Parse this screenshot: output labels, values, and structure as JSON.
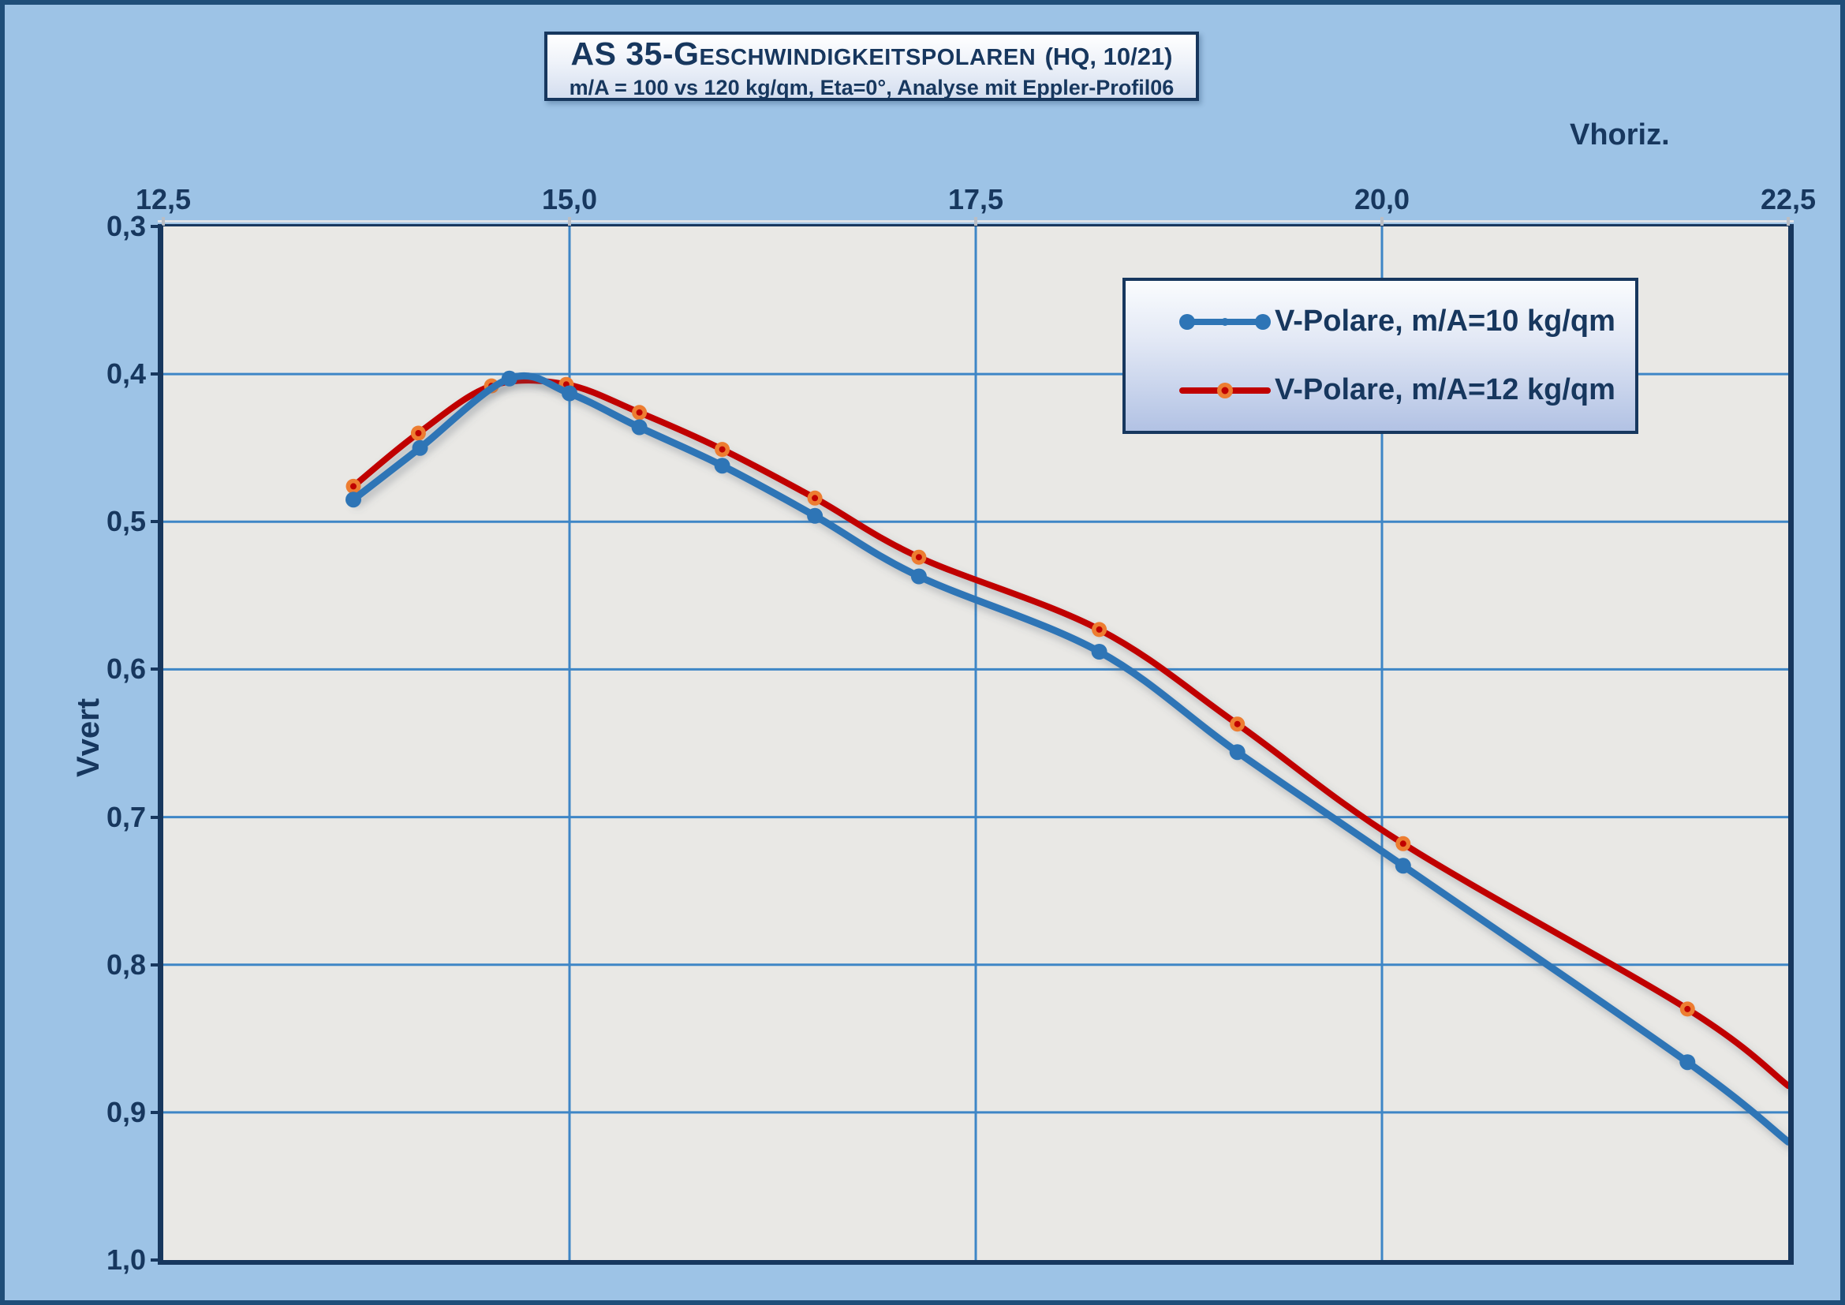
{
  "frame": {
    "background": "#9DC3E6",
    "border_color": "#1F4E79"
  },
  "title": {
    "main": "AS 35-Geschwindigkeitspolaren",
    "note": "(HQ, 10/21)",
    "subtitle": "m/A = 100 vs 120 kg/qm, Eta=0°, Analyse mit Eppler-Profil06"
  },
  "colors": {
    "navy": "#17375E",
    "plot_bg": "#E9E8E5",
    "grid": "#3E86C6",
    "blue": "#2E75B6",
    "red": "#C00000",
    "orange": "#ED7D31",
    "tick_gray": "#B9BEC6"
  },
  "chart_data": {
    "type": "line",
    "title": "AS 35-Geschwindigkeitspolaren (HQ, 10/21)",
    "subtitle": "m/A = 100 vs 120 kg/qm, Eta=0°, Analyse mit Eppler-Profil06",
    "xlabel": "Vhoriz.",
    "ylabel": "Vvert",
    "xlim": [
      12.5,
      22.5
    ],
    "ylim": [
      0.3,
      1.0
    ],
    "y_axis_inverted": true,
    "x_tick_values": [
      12.5,
      15.0,
      17.5,
      20.0,
      22.5
    ],
    "x_ticks": [
      "12,5",
      "15,0",
      "17,5",
      "20,0",
      "22,5"
    ],
    "y_tick_values": [
      0.3,
      0.4,
      0.5,
      0.6,
      0.7,
      0.8,
      0.9,
      1.0
    ],
    "y_ticks": [
      "0,3",
      "0,4",
      "0,5",
      "0,6",
      "0,7",
      "0,8",
      "0,9",
      "1,0"
    ],
    "grid": true,
    "legend_position": "upper right",
    "series": [
      {
        "name": "V-Polare, m/A=10 kg/qm",
        "color": "#2E75B6",
        "marker": "dot",
        "x": [
          13.67,
          14.08,
          14.63,
          15.0,
          15.43,
          15.94,
          16.51,
          17.15,
          18.26,
          19.11,
          20.13,
          21.88,
          22.5
        ],
        "y": [
          0.485,
          0.45,
          0.403,
          0.413,
          0.436,
          0.462,
          0.496,
          0.537,
          0.588,
          0.656,
          0.733,
          0.866,
          0.92
        ]
      },
      {
        "name": "V-Polare, m/A=12 kg/qm",
        "color": "#C00000",
        "marker": "ring",
        "marker_color": "#ED7D31",
        "x": [
          13.67,
          14.07,
          14.52,
          14.98,
          15.43,
          15.94,
          16.51,
          17.15,
          18.26,
          19.11,
          20.13,
          21.88,
          22.5
        ],
        "y": [
          0.476,
          0.44,
          0.408,
          0.407,
          0.426,
          0.451,
          0.484,
          0.524,
          0.573,
          0.637,
          0.718,
          0.83,
          0.882
        ]
      }
    ]
  }
}
